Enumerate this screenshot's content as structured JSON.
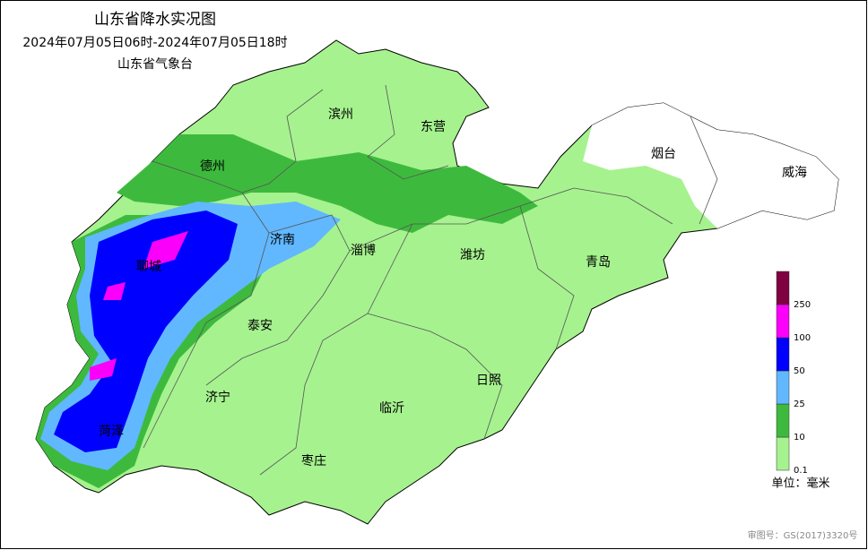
{
  "header": {
    "title": "山东省降水实况图",
    "period": "2024年07月05日06时-2024年07月05日18时",
    "agency": "山东省气象台"
  },
  "cities": [
    "滨州",
    "东营",
    "德州",
    "烟台",
    "威海",
    "济南",
    "淄博",
    "潍坊",
    "青岛",
    "聊城",
    "泰安",
    "济宁",
    "临沂",
    "日照",
    "菏泽",
    "枣庄"
  ],
  "legend": {
    "ticks": [
      0.1,
      10,
      25,
      50,
      100,
      250
    ],
    "colors": [
      "#a6f28f",
      "#3dba3d",
      "#61b8ff",
      "#0000fe",
      "#fa00fa",
      "#800040"
    ],
    "unit": "单位：毫米"
  },
  "footer": {
    "approval": "审图号：GS(2017)3320号"
  }
}
